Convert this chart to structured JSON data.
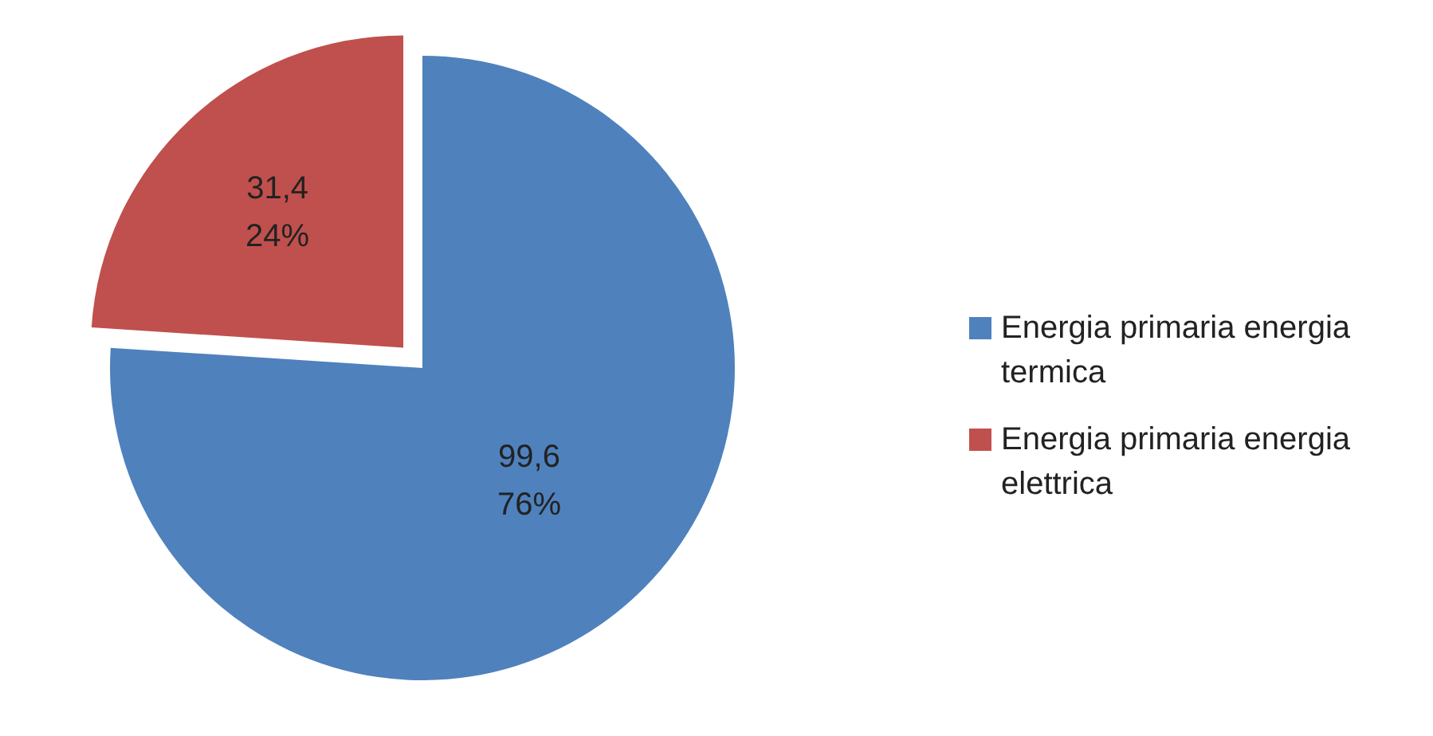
{
  "chart_data": {
    "type": "pie",
    "categories": [
      "Energia primaria energia termica",
      "Energia primaria energia elettrica"
    ],
    "values": [
      99.6,
      31.4
    ],
    "colors": [
      "#4f81bd",
      "#c0504d"
    ],
    "value_labels": [
      "99,6\n76%",
      "31,4\n24%"
    ],
    "legend": "right"
  }
}
